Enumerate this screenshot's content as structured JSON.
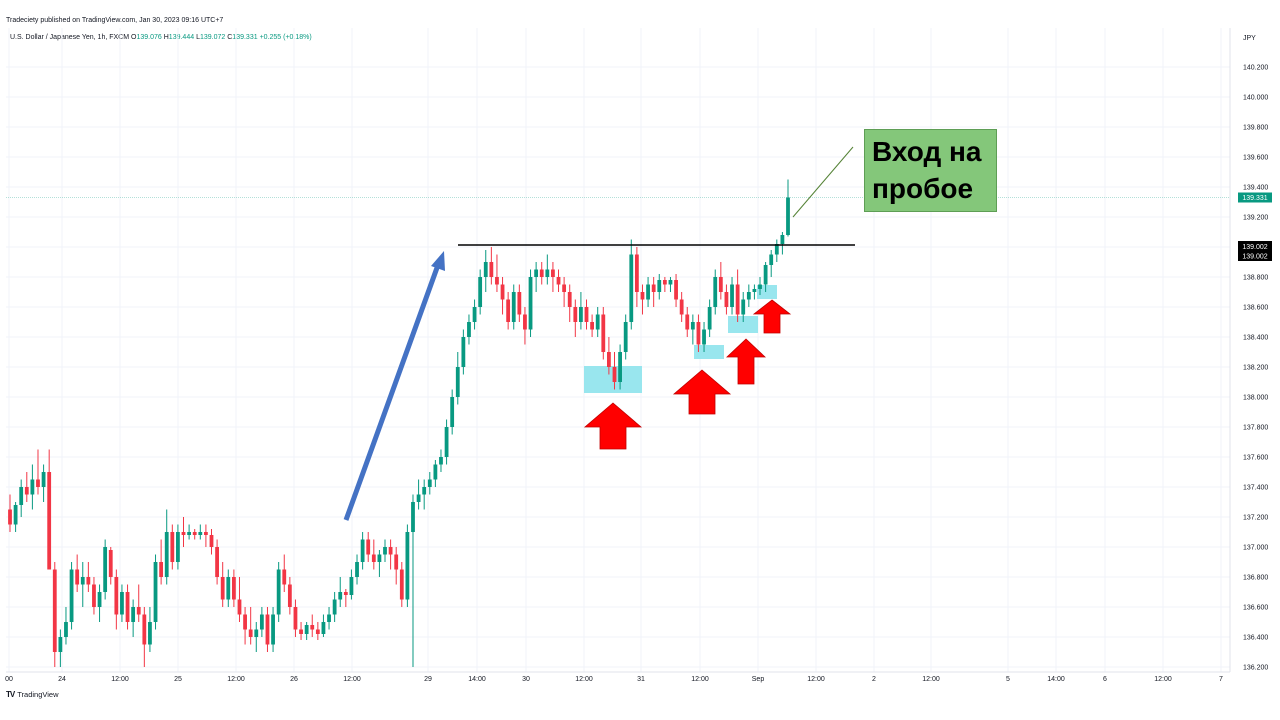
{
  "header": {
    "published": "Tradeciety published on TradingView.com, Jan 30, 2023 09:16 UTC+7",
    "symbol": "U.S. Dollar / Japanese Yen, 1h, FXCM",
    "o_label": "O",
    "o_value": "139.076",
    "h_label": "H",
    "h_value": "139.444",
    "l_label": "L",
    "l_value": "139.072",
    "c_label": "C",
    "c_value": "139.331",
    "change": "+0.255 (+0.18%)"
  },
  "brand": {
    "icon": "tradingview-logo-icon",
    "name": "TradingView"
  },
  "annotation": {
    "line1": "Вход на",
    "line2": "пробое"
  },
  "colors": {
    "up": "#089981",
    "down": "#f23645",
    "arrow_blue": "#4472c4",
    "arrow_red": "#ff0000",
    "box": "#8ee3ec",
    "callout": "#84c77a"
  },
  "chart_data": {
    "type": "candlestick",
    "title": "U.S. Dollar / Japanese Yen, 1h, FXCM",
    "currency": "JPY",
    "x_ticks": [
      "00",
      "24",
      "12:00",
      "25",
      "12:00",
      "26",
      "12:00",
      "29",
      "14:00",
      "30",
      "12:00",
      "31",
      "12:00",
      "Sep",
      "12:00",
      "2",
      "12:00",
      "5",
      "14:00",
      "6",
      "12:00",
      "7"
    ],
    "y_ticks": [
      "140.200",
      "140.000",
      "139.800",
      "139.600",
      "139.400",
      "139.200",
      "139.000",
      "138.800",
      "138.600",
      "138.400",
      "138.200",
      "138.000",
      "137.800",
      "137.600",
      "137.400",
      "137.200",
      "137.000",
      "136.800",
      "136.600",
      "136.400",
      "136.200"
    ],
    "ylim": [
      136.15,
      140.35
    ],
    "last_price": "139.331",
    "level_price": "139.002",
    "level_price_2": "139.002",
    "breakout_level": 139.002,
    "candles": [
      [
        137.25,
        137.35,
        137.1,
        137.15
      ],
      [
        137.15,
        137.3,
        137.1,
        137.28
      ],
      [
        137.28,
        137.45,
        137.2,
        137.4
      ],
      [
        137.4,
        137.5,
        137.3,
        137.35
      ],
      [
        137.35,
        137.55,
        137.25,
        137.45
      ],
      [
        137.45,
        137.65,
        137.35,
        137.4
      ],
      [
        137.4,
        137.55,
        137.3,
        137.5
      ],
      [
        137.5,
        137.65,
        136.85,
        136.85
      ],
      [
        136.85,
        136.9,
        136.2,
        136.3
      ],
      [
        136.3,
        136.45,
        136.2,
        136.4
      ],
      [
        136.4,
        136.6,
        136.35,
        136.5
      ],
      [
        136.5,
        136.9,
        136.45,
        136.85
      ],
      [
        136.85,
        136.95,
        136.7,
        136.75
      ],
      [
        136.75,
        136.9,
        136.6,
        136.8
      ],
      [
        136.8,
        136.9,
        136.7,
        136.75
      ],
      [
        136.75,
        136.8,
        136.55,
        136.6
      ],
      [
        136.6,
        136.75,
        136.5,
        136.7
      ],
      [
        136.7,
        137.05,
        136.65,
        137.0
      ],
      [
        136.98,
        137.0,
        136.75,
        136.8
      ],
      [
        136.8,
        136.85,
        136.45,
        136.55
      ],
      [
        136.55,
        136.75,
        136.5,
        136.7
      ],
      [
        136.7,
        136.75,
        136.45,
        136.5
      ],
      [
        136.5,
        136.65,
        136.4,
        136.6
      ],
      [
        136.6,
        136.75,
        136.5,
        136.55
      ],
      [
        136.55,
        136.6,
        136.2,
        136.35
      ],
      [
        136.35,
        136.6,
        136.3,
        136.5
      ],
      [
        136.5,
        136.95,
        136.45,
        136.9
      ],
      [
        136.9,
        137.05,
        136.75,
        136.8
      ],
      [
        136.8,
        137.25,
        136.75,
        137.1
      ],
      [
        137.1,
        137.15,
        136.85,
        136.9
      ],
      [
        136.9,
        137.15,
        136.85,
        137.1
      ],
      [
        137.1,
        137.2,
        137.0,
        137.08
      ],
      [
        137.08,
        137.15,
        137.05,
        137.1
      ],
      [
        137.1,
        137.12,
        137.05,
        137.08
      ],
      [
        137.08,
        137.15,
        137.05,
        137.1
      ],
      [
        137.1,
        137.15,
        137.0,
        137.08
      ],
      [
        137.08,
        137.12,
        136.95,
        137.0
      ],
      [
        137.0,
        137.05,
        136.75,
        136.8
      ],
      [
        136.8,
        136.9,
        136.6,
        136.65
      ],
      [
        136.65,
        136.85,
        136.6,
        136.8
      ],
      [
        136.8,
        136.85,
        136.6,
        136.65
      ],
      [
        136.65,
        136.8,
        136.5,
        136.55
      ],
      [
        136.55,
        136.6,
        136.35,
        136.45
      ],
      [
        136.45,
        136.6,
        136.35,
        136.4
      ],
      [
        136.4,
        136.5,
        136.3,
        136.45
      ],
      [
        136.45,
        136.6,
        136.4,
        136.55
      ],
      [
        136.55,
        136.6,
        136.3,
        136.35
      ],
      [
        136.35,
        136.6,
        136.3,
        136.55
      ],
      [
        136.55,
        136.9,
        136.5,
        136.85
      ],
      [
        136.85,
        136.95,
        136.7,
        136.75
      ],
      [
        136.75,
        136.8,
        136.55,
        136.6
      ],
      [
        136.6,
        136.65,
        136.4,
        136.45
      ],
      [
        136.45,
        136.5,
        136.38,
        136.42
      ],
      [
        136.42,
        136.5,
        136.38,
        136.48
      ],
      [
        136.48,
        136.55,
        136.4,
        136.45
      ],
      [
        136.45,
        136.5,
        136.38,
        136.42
      ],
      [
        136.42,
        136.55,
        136.4,
        136.5
      ],
      [
        136.5,
        136.6,
        136.45,
        136.55
      ],
      [
        136.55,
        136.7,
        136.5,
        136.65
      ],
      [
        136.65,
        136.8,
        136.6,
        136.7
      ],
      [
        136.7,
        136.72,
        136.6,
        136.68
      ],
      [
        136.68,
        136.85,
        136.65,
        136.8
      ],
      [
        136.8,
        136.95,
        136.75,
        136.9
      ],
      [
        136.9,
        137.1,
        136.85,
        137.05
      ],
      [
        137.05,
        137.1,
        136.9,
        136.95
      ],
      [
        136.95,
        137.05,
        136.85,
        136.9
      ],
      [
        136.9,
        136.98,
        136.8,
        136.95
      ],
      [
        136.95,
        137.05,
        136.9,
        137.0
      ],
      [
        137.0,
        137.05,
        136.85,
        136.95
      ],
      [
        136.95,
        137.0,
        136.75,
        136.85
      ],
      [
        136.85,
        136.9,
        136.6,
        136.65
      ],
      [
        136.65,
        137.15,
        136.6,
        137.1
      ],
      [
        137.1,
        137.35,
        136.2,
        137.3
      ],
      [
        137.3,
        137.45,
        137.25,
        137.35
      ],
      [
        137.35,
        137.45,
        137.25,
        137.4
      ],
      [
        137.4,
        137.5,
        137.35,
        137.45
      ],
      [
        137.45,
        137.58,
        137.4,
        137.55
      ],
      [
        137.55,
        137.65,
        137.5,
        137.6
      ],
      [
        137.6,
        137.85,
        137.55,
        137.8
      ],
      [
        137.8,
        138.05,
        137.75,
        138.0
      ],
      [
        138.0,
        138.3,
        137.95,
        138.2
      ],
      [
        138.2,
        138.45,
        138.15,
        138.4
      ],
      [
        138.4,
        138.55,
        138.35,
        138.5
      ],
      [
        138.5,
        138.65,
        138.45,
        138.6
      ],
      [
        138.6,
        138.85,
        138.55,
        138.8
      ],
      [
        138.8,
        138.98,
        138.7,
        138.9
      ],
      [
        138.9,
        139.0,
        138.75,
        138.8
      ],
      [
        138.8,
        138.95,
        138.7,
        138.75
      ],
      [
        138.75,
        138.8,
        138.55,
        138.65
      ],
      [
        138.65,
        138.7,
        138.45,
        138.5
      ],
      [
        138.5,
        138.75,
        138.45,
        138.7
      ],
      [
        138.7,
        138.75,
        138.5,
        138.55
      ],
      [
        138.55,
        138.6,
        138.35,
        138.45
      ],
      [
        138.45,
        138.85,
        138.4,
        138.8
      ],
      [
        138.8,
        138.9,
        138.7,
        138.85
      ],
      [
        138.85,
        138.9,
        138.75,
        138.8
      ],
      [
        138.8,
        138.95,
        138.75,
        138.85
      ],
      [
        138.85,
        138.9,
        138.7,
        138.8
      ],
      [
        138.8,
        138.85,
        138.7,
        138.75
      ],
      [
        138.75,
        138.8,
        138.6,
        138.7
      ],
      [
        138.7,
        138.75,
        138.5,
        138.6
      ],
      [
        138.6,
        138.65,
        138.4,
        138.5
      ],
      [
        138.5,
        138.7,
        138.45,
        138.6
      ],
      [
        138.6,
        138.65,
        138.45,
        138.5
      ],
      [
        138.5,
        138.55,
        138.4,
        138.45
      ],
      [
        138.45,
        138.6,
        138.4,
        138.55
      ],
      [
        138.55,
        138.6,
        138.25,
        138.3
      ],
      [
        138.3,
        138.4,
        138.15,
        138.2
      ],
      [
        138.2,
        138.3,
        138.05,
        138.1
      ],
      [
        138.1,
        138.35,
        138.05,
        138.3
      ],
      [
        138.3,
        138.55,
        138.25,
        138.5
      ],
      [
        138.5,
        139.05,
        138.45,
        138.95
      ],
      [
        138.95,
        139.0,
        138.6,
        138.7
      ],
      [
        138.7,
        138.75,
        138.55,
        138.65
      ],
      [
        138.65,
        138.8,
        138.6,
        138.75
      ],
      [
        138.75,
        138.8,
        138.6,
        138.7
      ],
      [
        138.7,
        138.82,
        138.65,
        138.78
      ],
      [
        138.78,
        138.8,
        138.7,
        138.75
      ],
      [
        138.75,
        138.8,
        138.7,
        138.78
      ],
      [
        138.78,
        138.82,
        138.6,
        138.65
      ],
      [
        138.65,
        138.7,
        138.5,
        138.55
      ],
      [
        138.55,
        138.6,
        138.4,
        138.45
      ],
      [
        138.45,
        138.55,
        138.35,
        138.5
      ],
      [
        138.5,
        138.55,
        138.3,
        138.35
      ],
      [
        138.35,
        138.5,
        138.3,
        138.45
      ],
      [
        138.45,
        138.65,
        138.4,
        138.6
      ],
      [
        138.6,
        138.85,
        138.55,
        138.8
      ],
      [
        138.8,
        138.9,
        138.65,
        138.7
      ],
      [
        138.7,
        138.75,
        138.55,
        138.6
      ],
      [
        138.6,
        138.8,
        138.55,
        138.75
      ],
      [
        138.75,
        138.85,
        138.5,
        138.55
      ],
      [
        138.55,
        138.7,
        138.5,
        138.65
      ],
      [
        138.65,
        138.75,
        138.6,
        138.7
      ],
      [
        138.7,
        138.75,
        138.65,
        138.72
      ],
      [
        138.72,
        138.8,
        138.68,
        138.75
      ],
      [
        138.75,
        138.9,
        138.7,
        138.88
      ],
      [
        138.88,
        138.98,
        138.8,
        138.95
      ],
      [
        138.95,
        139.05,
        138.9,
        139.02
      ],
      [
        139.02,
        139.1,
        138.95,
        139.08
      ],
      [
        139.08,
        139.45,
        139.07,
        139.33
      ]
    ],
    "grid": true
  }
}
